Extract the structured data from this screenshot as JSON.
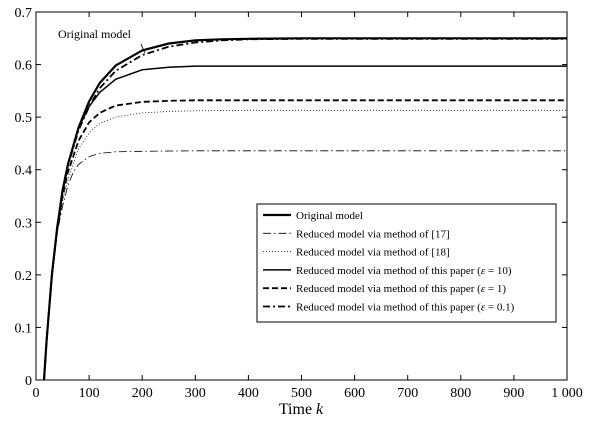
{
  "chart_data": {
    "type": "line",
    "xlabel": "Time",
    "xlabel_var": "k",
    "xlim": [
      0,
      1000
    ],
    "ylim": [
      0,
      0.7
    ],
    "x_ticks": [
      0,
      100,
      200,
      300,
      400,
      500,
      600,
      700,
      800,
      900,
      1000
    ],
    "x_tick_labels": [
      "0",
      "100",
      "200",
      "300",
      "400",
      "500",
      "600",
      "700",
      "800",
      "900",
      "1 000"
    ],
    "y_ticks": [
      0,
      0.1,
      0.2,
      0.3,
      0.4,
      0.5,
      0.6,
      0.7
    ],
    "y_tick_labels": [
      "0",
      "0.1",
      "0.2",
      "0.3",
      "0.4",
      "0.5",
      "0.6",
      "0.7"
    ],
    "grid": false,
    "legend_position": "bottom-right",
    "annotation": {
      "text": "Original model",
      "points_to": {
        "x": 205,
        "y": 0.622
      }
    },
    "series": [
      {
        "name": "Original model",
        "style": "solid",
        "stroke_width": 2.2,
        "color": "#000000",
        "x": [
          15,
          20,
          30,
          40,
          50,
          60,
          80,
          100,
          120,
          150,
          200,
          250,
          300,
          350,
          400,
          500,
          600,
          800,
          1000
        ],
        "y": [
          0,
          0.075,
          0.2,
          0.29,
          0.36,
          0.41,
          0.48,
          0.53,
          0.565,
          0.598,
          0.627,
          0.64,
          0.646,
          0.648,
          0.649,
          0.65,
          0.65,
          0.65,
          0.65
        ]
      },
      {
        "name": "Reduced model via method of [17]",
        "style": "dashdot-thin",
        "stroke_width": 0.8,
        "color": "#000000",
        "x": [
          15,
          20,
          30,
          40,
          50,
          60,
          70,
          80,
          100,
          120,
          150,
          200,
          300,
          400,
          600,
          800,
          1000
        ],
        "y": [
          0,
          0.075,
          0.2,
          0.28,
          0.33,
          0.37,
          0.395,
          0.41,
          0.425,
          0.431,
          0.434,
          0.435,
          0.436,
          0.436,
          0.436,
          0.436,
          0.436
        ]
      },
      {
        "name": "Reduced model via method of [18]",
        "style": "dotted",
        "stroke_width": 0.8,
        "color": "#000000",
        "x": [
          15,
          20,
          30,
          40,
          50,
          60,
          80,
          100,
          120,
          150,
          200,
          250,
          300,
          400,
          600,
          800,
          1000
        ],
        "y": [
          0,
          0.075,
          0.2,
          0.28,
          0.34,
          0.38,
          0.44,
          0.47,
          0.488,
          0.5,
          0.508,
          0.511,
          0.512,
          0.513,
          0.513,
          0.513,
          0.513
        ]
      },
      {
        "name": "Reduced model via method of this paper (ε = 10)",
        "eps": "10",
        "style": "solid",
        "stroke_width": 1.5,
        "color": "#000000",
        "x": [
          15,
          20,
          30,
          40,
          50,
          60,
          80,
          100,
          120,
          150,
          200,
          250,
          300,
          400,
          600,
          800,
          1000
        ],
        "y": [
          0,
          0.075,
          0.2,
          0.29,
          0.36,
          0.41,
          0.48,
          0.52,
          0.547,
          0.572,
          0.59,
          0.595,
          0.597,
          0.597,
          0.597,
          0.597,
          0.597
        ]
      },
      {
        "name": "Reduced model via method of this paper (ε = 1)",
        "eps": "1",
        "style": "dashed",
        "stroke_width": 1.8,
        "color": "#000000",
        "x": [
          15,
          20,
          30,
          40,
          50,
          60,
          80,
          100,
          120,
          150,
          200,
          250,
          300,
          400,
          600,
          800,
          1000
        ],
        "y": [
          0,
          0.075,
          0.2,
          0.285,
          0.35,
          0.395,
          0.455,
          0.49,
          0.508,
          0.522,
          0.529,
          0.531,
          0.532,
          0.532,
          0.532,
          0.532,
          0.532
        ]
      },
      {
        "name": "Reduced model via method of this paper (ε = 0.1)",
        "eps": "0.1",
        "style": "dashdot-thick",
        "stroke_width": 1.8,
        "color": "#000000",
        "x": [
          15,
          20,
          30,
          40,
          50,
          60,
          80,
          100,
          120,
          150,
          200,
          250,
          300,
          350,
          400,
          500,
          600,
          800,
          1000
        ],
        "y": [
          0,
          0.075,
          0.2,
          0.288,
          0.357,
          0.407,
          0.475,
          0.52,
          0.555,
          0.588,
          0.618,
          0.634,
          0.642,
          0.646,
          0.648,
          0.649,
          0.649,
          0.649,
          0.649
        ]
      }
    ]
  }
}
